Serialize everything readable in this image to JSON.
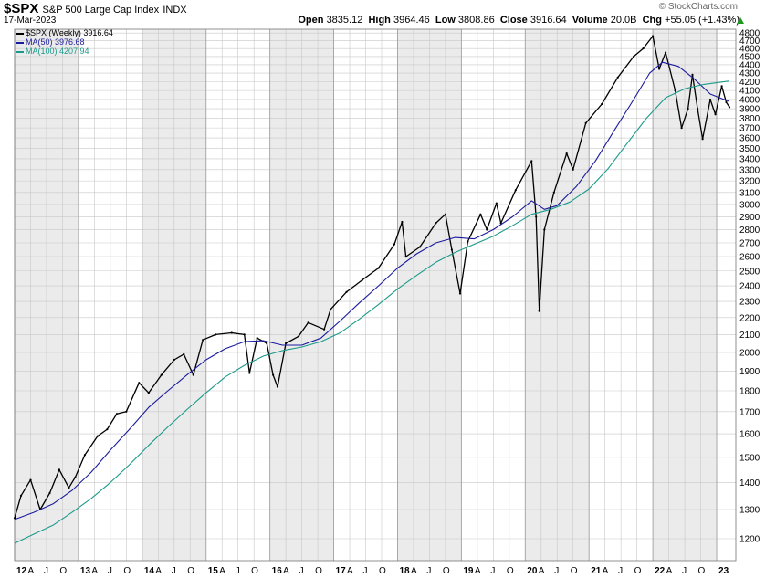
{
  "header": {
    "symbol": "$SPX",
    "name": "S&P 500 Large Cap Index",
    "exchange": "INDX",
    "date": "17-Mar-2023",
    "watermark": "© StockCharts.com",
    "open_label": "Open",
    "open": "3835.12",
    "high_label": "High",
    "high": "3964.46",
    "low_label": "Low",
    "low": "3808.86",
    "close_label": "Close",
    "close": "3916.64",
    "volume_label": "Volume",
    "volume": "20.0B",
    "chg_label": "Chg",
    "chg": "+55.05 (+1.43%)"
  },
  "legend": [
    {
      "label": "$SPX (Weekly) 3916.64",
      "color": "#000000"
    },
    {
      "label": "MA(50) 3976.68",
      "color": "#1a1a9e"
    },
    {
      "label": "MA(100) 4207.94",
      "color": "#1a9a8a"
    }
  ],
  "chart_data": {
    "type": "line",
    "title": "S&P 500 Large Cap Index",
    "ylabel": "",
    "xlabel": "",
    "scale": "log",
    "ylim": [
      1130,
      4850
    ],
    "xlim": [
      2012.0,
      2023.3
    ],
    "grid": true,
    "legend_position": "top-left",
    "y_ticks": [
      1200,
      1300,
      1400,
      1500,
      1600,
      1700,
      1800,
      1900,
      2000,
      2100,
      2200,
      2300,
      2400,
      2500,
      2600,
      2700,
      2800,
      2900,
      3000,
      3100,
      3200,
      3300,
      3400,
      3500,
      3600,
      3700,
      3800,
      3900,
      4000,
      4100,
      4200,
      4300,
      4400,
      4500,
      4600,
      4700,
      4800
    ],
    "x_ticks": [
      {
        "label": "12",
        "x": 2012.0,
        "major": true
      },
      {
        "label": "A",
        "x": 2012.25
      },
      {
        "label": "J",
        "x": 2012.5
      },
      {
        "label": "O",
        "x": 2012.75
      },
      {
        "label": "13",
        "x": 2013.0,
        "major": true
      },
      {
        "label": "A",
        "x": 2013.25
      },
      {
        "label": "J",
        "x": 2013.5
      },
      {
        "label": "O",
        "x": 2013.75
      },
      {
        "label": "14",
        "x": 2014.0,
        "major": true
      },
      {
        "label": "A",
        "x": 2014.25
      },
      {
        "label": "J",
        "x": 2014.5
      },
      {
        "label": "O",
        "x": 2014.75
      },
      {
        "label": "15",
        "x": 2015.0,
        "major": true
      },
      {
        "label": "A",
        "x": 2015.25
      },
      {
        "label": "J",
        "x": 2015.5
      },
      {
        "label": "O",
        "x": 2015.75
      },
      {
        "label": "16",
        "x": 2016.0,
        "major": true
      },
      {
        "label": "A",
        "x": 2016.25
      },
      {
        "label": "J",
        "x": 2016.5
      },
      {
        "label": "O",
        "x": 2016.75
      },
      {
        "label": "17",
        "x": 2017.0,
        "major": true
      },
      {
        "label": "A",
        "x": 2017.25
      },
      {
        "label": "J",
        "x": 2017.5
      },
      {
        "label": "O",
        "x": 2017.75
      },
      {
        "label": "18",
        "x": 2018.0,
        "major": true
      },
      {
        "label": "A",
        "x": 2018.25
      },
      {
        "label": "J",
        "x": 2018.5
      },
      {
        "label": "O",
        "x": 2018.75
      },
      {
        "label": "19",
        "x": 2019.0,
        "major": true
      },
      {
        "label": "A",
        "x": 2019.25
      },
      {
        "label": "J",
        "x": 2019.5
      },
      {
        "label": "O",
        "x": 2019.75
      },
      {
        "label": "20",
        "x": 2020.0,
        "major": true
      },
      {
        "label": "A",
        "x": 2020.25
      },
      {
        "label": "J",
        "x": 2020.5
      },
      {
        "label": "O",
        "x": 2020.75
      },
      {
        "label": "21",
        "x": 2021.0,
        "major": true
      },
      {
        "label": "A",
        "x": 2021.25
      },
      {
        "label": "J",
        "x": 2021.5
      },
      {
        "label": "O",
        "x": 2021.75
      },
      {
        "label": "22",
        "x": 2022.0,
        "major": true
      },
      {
        "label": "A",
        "x": 2022.25
      },
      {
        "label": "J",
        "x": 2022.5
      },
      {
        "label": "O",
        "x": 2022.75
      },
      {
        "label": "23",
        "x": 2023.0,
        "major": true
      }
    ],
    "series": [
      {
        "name": "$SPX (Weekly)",
        "color": "#000000",
        "points": [
          [
            2012.0,
            1270
          ],
          [
            2012.1,
            1350
          ],
          [
            2012.25,
            1410
          ],
          [
            2012.4,
            1300
          ],
          [
            2012.55,
            1360
          ],
          [
            2012.7,
            1450
          ],
          [
            2012.85,
            1380
          ],
          [
            2012.95,
            1420
          ],
          [
            2013.1,
            1510
          ],
          [
            2013.3,
            1590
          ],
          [
            2013.45,
            1620
          ],
          [
            2013.6,
            1690
          ],
          [
            2013.75,
            1700
          ],
          [
            2013.95,
            1840
          ],
          [
            2014.1,
            1790
          ],
          [
            2014.3,
            1880
          ],
          [
            2014.5,
            1960
          ],
          [
            2014.65,
            1990
          ],
          [
            2014.8,
            1880
          ],
          [
            2014.95,
            2070
          ],
          [
            2015.15,
            2100
          ],
          [
            2015.4,
            2110
          ],
          [
            2015.6,
            2100
          ],
          [
            2015.68,
            1890
          ],
          [
            2015.8,
            2080
          ],
          [
            2015.95,
            2050
          ],
          [
            2016.05,
            1880
          ],
          [
            2016.12,
            1820
          ],
          [
            2016.25,
            2050
          ],
          [
            2016.45,
            2090
          ],
          [
            2016.6,
            2170
          ],
          [
            2016.85,
            2130
          ],
          [
            2016.95,
            2250
          ],
          [
            2017.2,
            2360
          ],
          [
            2017.45,
            2440
          ],
          [
            2017.7,
            2520
          ],
          [
            2017.95,
            2690
          ],
          [
            2018.07,
            2860
          ],
          [
            2018.13,
            2600
          ],
          [
            2018.35,
            2670
          ],
          [
            2018.6,
            2850
          ],
          [
            2018.75,
            2920
          ],
          [
            2018.85,
            2650
          ],
          [
            2018.98,
            2350
          ],
          [
            2019.1,
            2710
          ],
          [
            2019.3,
            2920
          ],
          [
            2019.4,
            2800
          ],
          [
            2019.55,
            3010
          ],
          [
            2019.62,
            2850
          ],
          [
            2019.85,
            3120
          ],
          [
            2020.1,
            3380
          ],
          [
            2020.17,
            2900
          ],
          [
            2020.22,
            2240
          ],
          [
            2020.3,
            2800
          ],
          [
            2020.45,
            3100
          ],
          [
            2020.65,
            3450
          ],
          [
            2020.75,
            3300
          ],
          [
            2020.95,
            3750
          ],
          [
            2021.2,
            3950
          ],
          [
            2021.45,
            4250
          ],
          [
            2021.7,
            4500
          ],
          [
            2021.85,
            4600
          ],
          [
            2022.0,
            4760
          ],
          [
            2022.1,
            4350
          ],
          [
            2022.2,
            4550
          ],
          [
            2022.35,
            4100
          ],
          [
            2022.45,
            3700
          ],
          [
            2022.55,
            3900
          ],
          [
            2022.62,
            4280
          ],
          [
            2022.7,
            3900
          ],
          [
            2022.78,
            3590
          ],
          [
            2022.9,
            4000
          ],
          [
            2022.98,
            3840
          ],
          [
            2023.08,
            4150
          ],
          [
            2023.15,
            3970
          ],
          [
            2023.2,
            3916.64
          ]
        ]
      },
      {
        "name": "MA(50)",
        "color": "#1a1a9e",
        "points": [
          [
            2012.0,
            1265
          ],
          [
            2012.3,
            1290
          ],
          [
            2012.6,
            1320
          ],
          [
            2012.9,
            1370
          ],
          [
            2013.2,
            1440
          ],
          [
            2013.5,
            1530
          ],
          [
            2013.8,
            1620
          ],
          [
            2014.1,
            1720
          ],
          [
            2014.4,
            1800
          ],
          [
            2014.7,
            1880
          ],
          [
            2015.0,
            1960
          ],
          [
            2015.3,
            2020
          ],
          [
            2015.6,
            2060
          ],
          [
            2015.9,
            2065
          ],
          [
            2016.2,
            2040
          ],
          [
            2016.5,
            2040
          ],
          [
            2016.8,
            2080
          ],
          [
            2017.1,
            2180
          ],
          [
            2017.4,
            2290
          ],
          [
            2017.7,
            2400
          ],
          [
            2018.0,
            2520
          ],
          [
            2018.3,
            2620
          ],
          [
            2018.6,
            2700
          ],
          [
            2018.9,
            2740
          ],
          [
            2019.2,
            2730
          ],
          [
            2019.5,
            2800
          ],
          [
            2019.8,
            2900
          ],
          [
            2020.1,
            3030
          ],
          [
            2020.3,
            2960
          ],
          [
            2020.5,
            2990
          ],
          [
            2020.8,
            3150
          ],
          [
            2021.1,
            3380
          ],
          [
            2021.4,
            3680
          ],
          [
            2021.7,
            4000
          ],
          [
            2021.95,
            4300
          ],
          [
            2022.15,
            4430
          ],
          [
            2022.4,
            4380
          ],
          [
            2022.65,
            4230
          ],
          [
            2022.9,
            4060
          ],
          [
            2023.2,
            3976.68
          ]
        ]
      },
      {
        "name": "MA(100)",
        "color": "#1a9a8a",
        "points": [
          [
            2012.0,
            1185
          ],
          [
            2012.3,
            1215
          ],
          [
            2012.6,
            1245
          ],
          [
            2012.9,
            1290
          ],
          [
            2013.2,
            1340
          ],
          [
            2013.5,
            1400
          ],
          [
            2013.8,
            1470
          ],
          [
            2014.1,
            1550
          ],
          [
            2014.4,
            1630
          ],
          [
            2014.7,
            1710
          ],
          [
            2015.0,
            1790
          ],
          [
            2015.3,
            1870
          ],
          [
            2015.6,
            1930
          ],
          [
            2015.9,
            1980
          ],
          [
            2016.2,
            2010
          ],
          [
            2016.5,
            2030
          ],
          [
            2016.8,
            2060
          ],
          [
            2017.1,
            2110
          ],
          [
            2017.4,
            2190
          ],
          [
            2017.7,
            2280
          ],
          [
            2018.0,
            2380
          ],
          [
            2018.3,
            2470
          ],
          [
            2018.6,
            2560
          ],
          [
            2018.9,
            2630
          ],
          [
            2019.2,
            2690
          ],
          [
            2019.5,
            2750
          ],
          [
            2019.8,
            2830
          ],
          [
            2020.1,
            2920
          ],
          [
            2020.4,
            2960
          ],
          [
            2020.7,
            3020
          ],
          [
            2021.0,
            3130
          ],
          [
            2021.3,
            3310
          ],
          [
            2021.6,
            3550
          ],
          [
            2021.9,
            3800
          ],
          [
            2022.2,
            4020
          ],
          [
            2022.5,
            4120
          ],
          [
            2022.8,
            4170
          ],
          [
            2023.2,
            4207.94
          ]
        ]
      }
    ]
  }
}
